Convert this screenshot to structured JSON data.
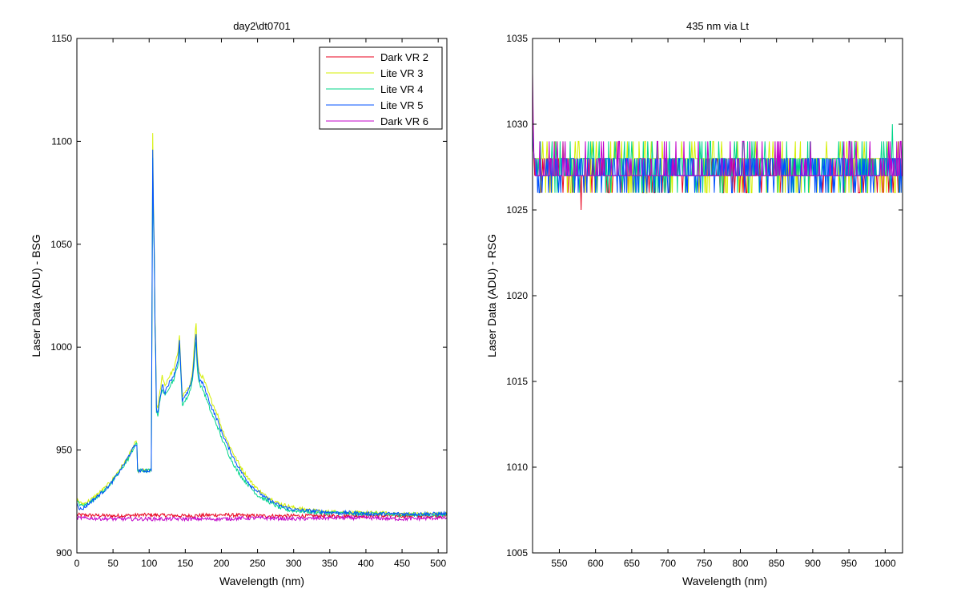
{
  "colors": {
    "red": "#e8001c",
    "yellow": "#d4ef00",
    "green": "#00d68a",
    "blue": "#0050ff",
    "magenta": "#c000c8"
  },
  "chart_data": [
    {
      "type": "line",
      "title": "day2\\dt0701",
      "xlabel": "Wavelength (nm)",
      "ylabel": "Laser Data (ADU) - BSG",
      "xlim": [
        0,
        512
      ],
      "ylim": [
        900,
        1150
      ],
      "xticks": [
        0,
        50,
        100,
        150,
        200,
        250,
        300,
        350,
        400,
        450,
        500
      ],
      "yticks": [
        900,
        950,
        1000,
        1050,
        1100,
        1150
      ],
      "legend_position": "top-right",
      "series": [
        {
          "name": "Dark VR 2",
          "color": "#e8001c",
          "x": [
            0,
            50,
            100,
            150,
            200,
            250,
            300,
            350,
            400,
            450,
            500,
            512
          ],
          "y": [
            918.5,
            918,
            918.5,
            918,
            918.5,
            918,
            918,
            918,
            918,
            918,
            918,
            918
          ]
        },
        {
          "name": "Lite VR 3",
          "color": "#d4ef00",
          "x": [
            0,
            3,
            6,
            10,
            20,
            30,
            40,
            50,
            60,
            70,
            80,
            83,
            84,
            90,
            100,
            103,
            105,
            106,
            107,
            108,
            109,
            110,
            112,
            115,
            118,
            120,
            122,
            125,
            130,
            135,
            140,
            142,
            144,
            146,
            150,
            155,
            160,
            163,
            164,
            165,
            166,
            168,
            170,
            175,
            180,
            185,
            190,
            195,
            200,
            210,
            220,
            230,
            240,
            250,
            260,
            270,
            280,
            290,
            300,
            320,
            340,
            360,
            380,
            400,
            420,
            440,
            460,
            480,
            500,
            512
          ],
          "y": [
            926,
            925,
            924,
            924,
            926,
            929,
            932,
            936,
            941,
            946,
            953,
            954,
            940,
            940,
            940,
            940,
            1104,
            1070,
            1050,
            1015,
            1000,
            972,
            971,
            978,
            986,
            984,
            981,
            984,
            987,
            990,
            998,
            1006,
            990,
            976,
            978,
            980,
            988,
            1003,
            1008,
            1012,
            1000,
            990,
            987,
            985,
            980,
            975,
            971,
            967,
            961,
            953,
            946,
            940,
            935,
            931,
            928,
            926,
            924,
            923,
            922,
            921,
            920,
            920,
            919.5,
            919.5,
            919.5,
            919,
            919,
            919,
            919,
            919
          ]
        },
        {
          "name": "Lite VR 4",
          "color": "#00d68a",
          "x": [
            0,
            3,
            6,
            10,
            20,
            30,
            40,
            50,
            60,
            70,
            80,
            83,
            84,
            90,
            100,
            103,
            105,
            106,
            107,
            108,
            109,
            110,
            112,
            115,
            118,
            120,
            122,
            125,
            130,
            135,
            140,
            142,
            144,
            146,
            150,
            155,
            160,
            163,
            164,
            165,
            166,
            168,
            170,
            175,
            180,
            185,
            190,
            195,
            200,
            210,
            220,
            230,
            240,
            250,
            260,
            270,
            280,
            290,
            300,
            320,
            340,
            360,
            380,
            400,
            420,
            440,
            460,
            480,
            500,
            512
          ],
          "y": [
            925,
            924,
            923,
            923,
            925,
            928,
            931,
            935,
            940,
            945,
            952,
            953,
            940,
            940,
            940,
            940,
            1092,
            1062,
            1045,
            1010,
            995,
            969,
            967,
            974,
            980,
            978,
            976,
            979,
            982,
            985,
            992,
            1000,
            986,
            972,
            974,
            977,
            984,
            995,
            1000,
            1003,
            993,
            985,
            982,
            979,
            974,
            969,
            965,
            961,
            956,
            948,
            941,
            936,
            932,
            928,
            926,
            924,
            922,
            921,
            920.5,
            920,
            919.5,
            919.5,
            919,
            919,
            919,
            918.5,
            918.5,
            918.5,
            918.5,
            918.5
          ]
        },
        {
          "name": "Lite VR 5",
          "color": "#0050ff",
          "x": [
            0,
            3,
            6,
            10,
            20,
            30,
            40,
            50,
            60,
            70,
            80,
            83,
            84,
            90,
            100,
            103,
            105,
            106,
            107,
            108,
            109,
            110,
            112,
            115,
            118,
            120,
            122,
            125,
            130,
            135,
            140,
            142,
            144,
            146,
            150,
            155,
            160,
            163,
            164,
            165,
            166,
            168,
            170,
            175,
            180,
            185,
            190,
            195,
            200,
            210,
            220,
            230,
            240,
            250,
            260,
            270,
            280,
            290,
            300,
            320,
            340,
            360,
            380,
            400,
            420,
            440,
            460,
            480,
            500,
            512
          ],
          "y": [
            925,
            922,
            921,
            922,
            925,
            928,
            931,
            935,
            940,
            946,
            952,
            953,
            940,
            940,
            940,
            940,
            1096,
            1066,
            1047,
            1012,
            997,
            970,
            968,
            975,
            982,
            980,
            978,
            981,
            984,
            987,
            994,
            1003,
            988,
            974,
            976,
            979,
            986,
            998,
            1004,
            1007,
            996,
            988,
            984,
            982,
            977,
            972,
            968,
            964,
            959,
            951,
            944,
            938,
            933,
            930,
            927,
            925,
            923,
            922,
            921,
            920.5,
            920,
            919.5,
            919.5,
            919,
            919,
            919,
            919,
            919,
            919,
            919
          ]
        },
        {
          "name": "Dark VR 6",
          "color": "#c000c8",
          "x": [
            0,
            50,
            100,
            150,
            200,
            250,
            300,
            350,
            400,
            450,
            500,
            512
          ],
          "y": [
            917,
            916.5,
            916.5,
            916.5,
            916.5,
            917,
            916.5,
            917,
            917,
            916.5,
            917,
            917
          ]
        }
      ]
    },
    {
      "type": "line",
      "title": "435 nm via Lt",
      "xlabel": "Wavelength (nm)",
      "ylabel": "Laser Data (ADU) - RSG",
      "xlim": [
        513,
        1024
      ],
      "ylim": [
        1005,
        1035
      ],
      "xticks": [
        550,
        600,
        650,
        700,
        750,
        800,
        850,
        900,
        950,
        1000
      ],
      "yticks": [
        1005,
        1010,
        1015,
        1020,
        1025,
        1030,
        1035
      ],
      "grid": false,
      "series": [
        {
          "color": "#e8001c",
          "start": [
            1031,
            1029,
            1028
          ],
          "mean": 1027.2,
          "noise_range": [
            1026,
            1028
          ],
          "spikes": [
            [
              580,
              1025
            ]
          ]
        },
        {
          "color": "#d4ef00",
          "start": [
            1030,
            1029,
            1028
          ],
          "mean": 1027.8,
          "noise_range": [
            1026,
            1029
          ],
          "spikes": []
        },
        {
          "color": "#00d68a",
          "start": [
            1030,
            1029,
            1028
          ],
          "mean": 1027.5,
          "noise_range": [
            1026,
            1029
          ],
          "spikes": [
            [
              1010,
              1030
            ]
          ]
        },
        {
          "color": "#0050ff",
          "start": [
            1032,
            1029,
            1028
          ],
          "mean": 1027.4,
          "noise_range": [
            1026,
            1028
          ],
          "spikes": []
        },
        {
          "color": "#c000c8",
          "start": [
            1033,
            1030,
            1028
          ],
          "mean": 1027.3,
          "noise_range": [
            1027,
            1029
          ],
          "spikes": []
        }
      ]
    }
  ]
}
